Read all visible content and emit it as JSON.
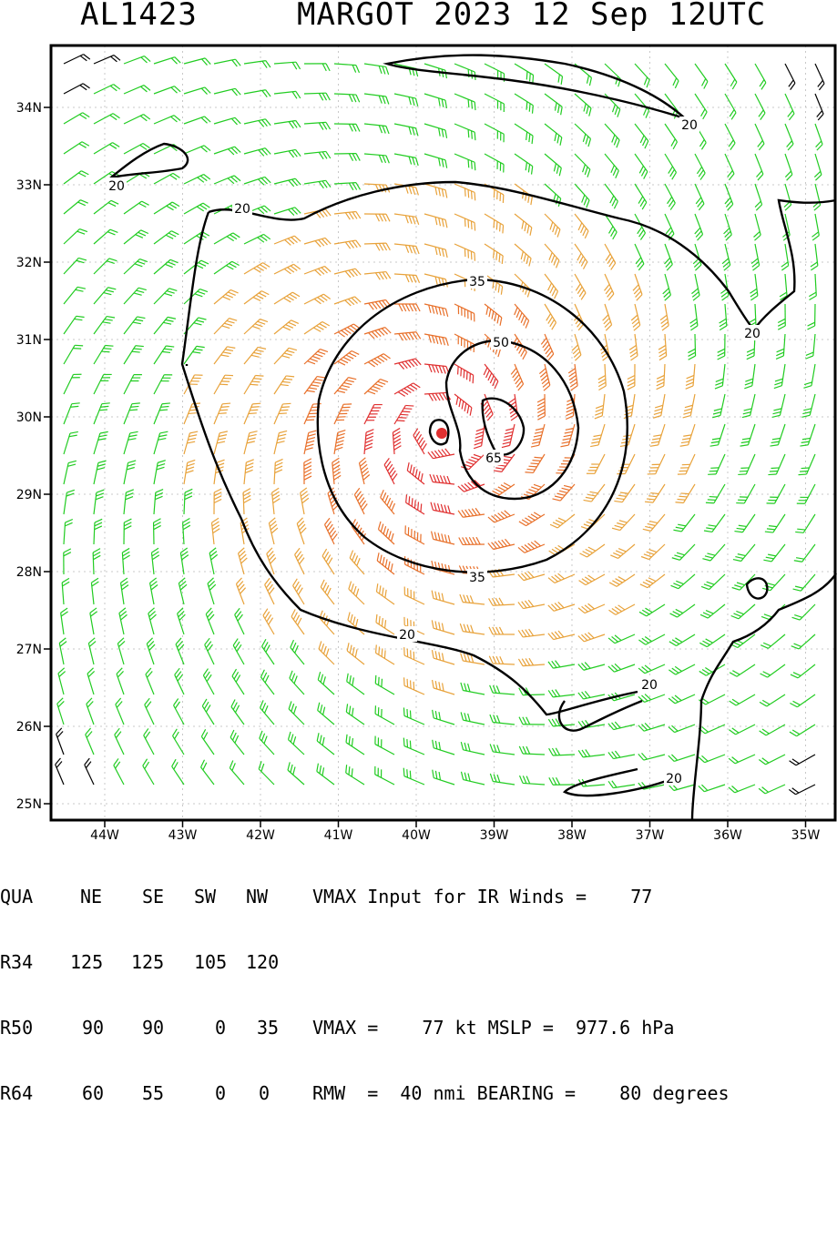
{
  "header": {
    "storm_id": "AL1423",
    "storm_info": "MARGOT 2023 12 Sep 12UTC"
  },
  "map": {
    "lat_labels": [
      "34N",
      "33N",
      "32N",
      "31N",
      "30N",
      "29N",
      "28N",
      "27N",
      "26N",
      "25N"
    ],
    "lon_labels": [
      "44W",
      "43W",
      "42W",
      "41W",
      "40W",
      "39W",
      "38W",
      "37W",
      "36W",
      "35W"
    ],
    "contour_labels": [
      "20",
      "20",
      "20",
      "20",
      "35",
      "50",
      "65",
      "35",
      "20",
      "20",
      "20"
    ],
    "colors": {
      "calm": "#000000",
      "gale": "#22cc22",
      "storm": "#e8a23a",
      "hurricane": "#e8702a",
      "core": "#e03030"
    },
    "center": {
      "lon": -39.65,
      "lat": 29.75
    }
  },
  "table": {
    "headers": [
      "QUA",
      "NE",
      "SE",
      "SW",
      "NW"
    ],
    "rows": [
      {
        "label": "R34",
        "values": [
          "125",
          "125",
          "105",
          "120"
        ]
      },
      {
        "label": "R50",
        "values": [
          "90",
          "90",
          "0",
          "35"
        ]
      },
      {
        "label": "R64",
        "values": [
          "60",
          "55",
          "0",
          "0"
        ]
      }
    ],
    "info": {
      "line1": "VMAX Input for IR Winds =    77",
      "line3": "VMAX =    77 kt MSLP =  977.6 hPa",
      "line4": "RMW  =  40 nmi BEARING =    80 degrees"
    }
  },
  "chart_data": {
    "type": "wind_barb_map",
    "storm": "MARGOT",
    "vmax_kt": 77,
    "mslp_hpa": 977.6,
    "rmw_nmi": 40,
    "bearing_deg": 80,
    "contour_levels_kt": [
      20,
      35,
      50,
      65
    ],
    "lon_range": [
      -44.6,
      -34.6
    ],
    "lat_range": [
      24.8,
      34.8
    ]
  }
}
